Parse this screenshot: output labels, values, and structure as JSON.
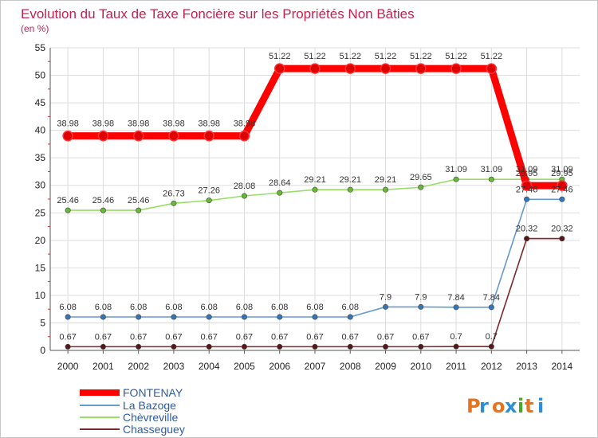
{
  "chart_data": {
    "type": "line",
    "title": "Evolution du Taux de Taxe Foncière sur les Propriétés Non Bâties",
    "subtitle": "(en %)",
    "x": [
      "2000",
      "2001",
      "2002",
      "2003",
      "2004",
      "2005",
      "2006",
      "2007",
      "2008",
      "2009",
      "2010",
      "2011",
      "2012",
      "2013",
      "2014"
    ],
    "ylim": [
      0,
      55
    ],
    "yticks": [
      0,
      5,
      10,
      15,
      20,
      25,
      30,
      35,
      40,
      45,
      50,
      55
    ],
    "grid": true,
    "series": [
      {
        "name": "FONTENAY",
        "color": "#ff0000",
        "point_color": "#dd0000",
        "width": "thick",
        "values": [
          38.98,
          38.98,
          38.98,
          38.98,
          38.98,
          38.98,
          51.22,
          51.22,
          51.22,
          51.22,
          51.22,
          51.22,
          51.22,
          29.95,
          29.95
        ],
        "labels": [
          "38.98",
          "38.98",
          "38.98",
          "38.98",
          "38.98",
          "38.98",
          "51.22",
          "51.22",
          "51.22",
          "51.22",
          "51.22",
          "51.22",
          "51.22",
          "29.95",
          "29.95"
        ]
      },
      {
        "name": "La Bazoge",
        "color": "#6699cc",
        "point_color": "#3377bb",
        "width": "thin",
        "values": [
          6.08,
          6.08,
          6.08,
          6.08,
          6.08,
          6.08,
          6.08,
          6.08,
          6.08,
          7.9,
          7.9,
          7.84,
          7.84,
          27.46,
          27.46
        ],
        "labels": [
          "6.08",
          "6.08",
          "6.08",
          "6.08",
          "6.08",
          "6.08",
          "6.08",
          "6.08",
          "6.08",
          "7.9",
          "7.9",
          "7.84",
          "7.84",
          "27.46",
          "27.46"
        ]
      },
      {
        "name": "Chèvreville",
        "color": "#99dd66",
        "point_color": "#66bb33",
        "width": "thin",
        "values": [
          25.46,
          25.46,
          25.46,
          26.73,
          27.26,
          28.08,
          28.64,
          29.21,
          29.21,
          29.21,
          29.65,
          31.09,
          31.09,
          31.09,
          31.09
        ],
        "labels": [
          "25.46",
          "25.46",
          "25.46",
          "26.73",
          "27.26",
          "28.08",
          "28.64",
          "29.21",
          "29.21",
          "29.21",
          "29.65",
          "31.09",
          "31.09",
          "31.09",
          "31.09"
        ]
      },
      {
        "name": "Chasseguey",
        "color": "#7a2a2a",
        "point_color": "#5a1515",
        "width": "thin",
        "values": [
          0.67,
          0.67,
          0.67,
          0.67,
          0.67,
          0.67,
          0.67,
          0.67,
          0.67,
          0.67,
          0.67,
          0.7,
          0.7,
          20.32,
          20.32
        ],
        "labels": [
          "0.67",
          "0.67",
          "0.67",
          "0.67",
          "0.67",
          "0.67",
          "0.67",
          "0.67",
          "0.67",
          "0.67",
          "0.67",
          "0.7",
          "0.7",
          "20.32",
          "20.32"
        ]
      }
    ]
  },
  "logo": {
    "text": "Proxiti",
    "colors": [
      "#e8731c",
      "#2c8fd6",
      "#e8731c",
      "#2c8fd6",
      "#4aa52c",
      "#e8731c",
      "#2c8fd6"
    ]
  }
}
